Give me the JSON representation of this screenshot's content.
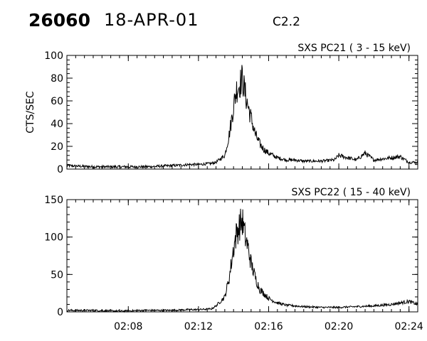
{
  "header": {
    "event_id": "26060",
    "date": "18-APR-01",
    "goes_class": "C2.2"
  },
  "chart_data": [
    {
      "type": "line",
      "title": "SXS PC21  (  3 - 15 keV)",
      "ylabel": "CTS/SEC",
      "xlabel": "",
      "xlim": [
        "02:04:30",
        "02:24:30"
      ],
      "ylim": [
        0,
        100
      ],
      "yticks": [
        0,
        20,
        40,
        60,
        80,
        100
      ],
      "xticks": [
        "02:08",
        "02:12",
        "02:16",
        "02:20",
        "02:24"
      ],
      "show_xtick_labels": false,
      "grid": false,
      "series": [
        {
          "x": [
            "02:04:30",
            "02:06:00",
            "02:07:30",
            "02:09:00",
            "02:10:30",
            "02:11:30",
            "02:12:00",
            "02:12:45",
            "02:13:00",
            "02:13:30",
            "02:13:45",
            "02:14:00",
            "02:14:10",
            "02:14:20",
            "02:14:30",
            "02:14:40",
            "02:14:50",
            "02:15:00",
            "02:15:15",
            "02:15:30",
            "02:15:45",
            "02:16:00",
            "02:16:30",
            "02:17:00",
            "02:17:30",
            "02:18:00",
            "02:19:00",
            "02:19:45",
            "02:20:00",
            "02:21:00",
            "02:21:30",
            "02:22:00",
            "02:23:00",
            "02:23:30",
            "02:24:00",
            "02:24:30"
          ],
          "y": [
            3,
            2,
            2,
            2,
            3,
            4,
            4,
            5,
            6,
            12,
            30,
            55,
            70,
            74,
            80,
            66,
            55,
            45,
            30,
            22,
            17,
            14,
            10,
            8,
            8,
            7,
            7,
            8,
            12,
            8,
            14,
            8,
            10,
            11,
            6,
            6
          ]
        }
      ]
    },
    {
      "type": "line",
      "title": "SXS PC22  ( 15 - 40 keV)",
      "ylabel": "",
      "xlabel": "",
      "xlim": [
        "02:04:30",
        "02:24:30"
      ],
      "ylim": [
        0,
        150
      ],
      "yticks": [
        0,
        50,
        100,
        150
      ],
      "xticks": [
        "02:08",
        "02:12",
        "02:16",
        "02:20",
        "02:24"
      ],
      "show_xtick_labels": true,
      "grid": false,
      "series": [
        {
          "x": [
            "02:04:30",
            "02:06:00",
            "02:07:30",
            "02:09:00",
            "02:10:30",
            "02:11:30",
            "02:12:00",
            "02:12:45",
            "02:13:00",
            "02:13:30",
            "02:13:45",
            "02:14:00",
            "02:14:10",
            "02:14:20",
            "02:14:30",
            "02:14:40",
            "02:14:50",
            "02:15:00",
            "02:15:15",
            "02:15:30",
            "02:15:45",
            "02:16:00",
            "02:16:30",
            "02:17:00",
            "02:17:30",
            "02:18:00",
            "02:19:00",
            "02:20:00",
            "02:21:00",
            "02:22:00",
            "02:23:00",
            "02:24:00",
            "02:24:30"
          ],
          "y": [
            2,
            2,
            1,
            2,
            2,
            3,
            3,
            4,
            8,
            20,
            45,
            85,
            105,
            115,
            122,
            100,
            85,
            65,
            45,
            30,
            24,
            18,
            12,
            9,
            8,
            7,
            6,
            6,
            7,
            8,
            10,
            14,
            10
          ]
        }
      ]
    }
  ]
}
